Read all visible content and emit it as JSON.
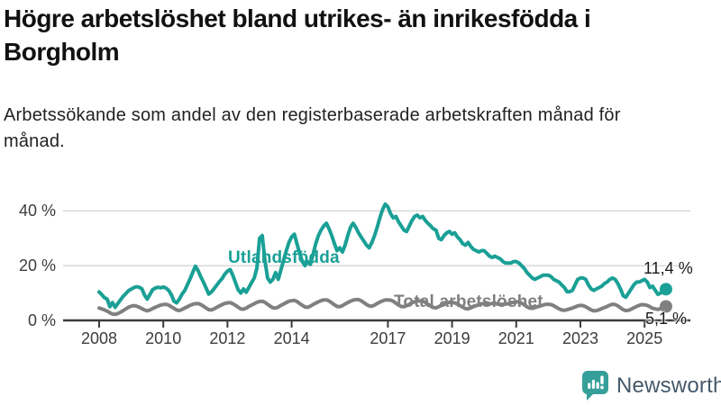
{
  "header": {
    "title": "Högre arbetslöshet bland utrikes- än inrikesfödda i Borgholm",
    "subtitle": "Arbetssökande som andel av den registerbaserade arbetskraften månad för månad."
  },
  "colors": {
    "accent_teal": "#1aa096",
    "series_gray": "#808080",
    "gridline": "#d9d9d9",
    "axis": "#3c3c3c",
    "logo_teal": "#379f99",
    "brand_text": "#44596b"
  },
  "footer": {
    "brand": "Newsworthy",
    "logo_icon": "bar-chart-speech-bubble-icon"
  },
  "chart_data": {
    "type": "line",
    "unit": "%",
    "x_start": "2008-01",
    "x_end": "2025-09",
    "frequency": "monthly",
    "x_ticks": [
      2008,
      2010,
      2012,
      2014,
      2017,
      2019,
      2021,
      2023,
      2025
    ],
    "y_ticks": [
      {
        "value": 0,
        "label": "0 %"
      },
      {
        "value": 20,
        "label": "20 %"
      },
      {
        "value": 40,
        "label": "40 %"
      }
    ],
    "ylim": [
      0,
      45
    ],
    "grid": "horizontal-only",
    "legend_position": "inline-labels",
    "series": [
      {
        "name": "Utlandsfödda",
        "color": "#1aa096",
        "end_value": 11.4,
        "end_label": "11,4 %",
        "values": [
          10.4,
          9.4,
          8.3,
          7.8,
          5.0,
          6.5,
          4.8,
          6.2,
          7.5,
          8.8,
          9.8,
          10.9,
          11.4,
          12.0,
          12.3,
          12.1,
          11.5,
          9.2,
          7.8,
          9.5,
          11.2,
          11.8,
          12.1,
          11.9,
          12.2,
          11.8,
          11.0,
          9.4,
          7.0,
          6.4,
          7.8,
          9.6,
          10.9,
          13.0,
          15.2,
          17.5,
          19.8,
          18.2,
          16.0,
          14.0,
          11.8,
          9.6,
          10.4,
          11.6,
          12.9,
          14.2,
          15.3,
          16.9,
          18.0,
          18.6,
          16.5,
          13.8,
          11.2,
          10.0,
          11.5,
          10.3,
          12.0,
          13.8,
          15.5,
          19.0,
          30.0,
          31.0,
          22.0,
          15.5,
          14.0,
          15.0,
          17.5,
          15.0,
          18.5,
          22.0,
          25.5,
          28.5,
          30.5,
          31.5,
          28.0,
          24.5,
          21.5,
          20.0,
          21.5,
          20.5,
          24.0,
          28.0,
          31.0,
          33.0,
          34.5,
          35.5,
          33.5,
          31.0,
          28.0,
          25.5,
          26.5,
          25.0,
          27.5,
          31.0,
          34.0,
          35.5,
          34.0,
          32.0,
          30.5,
          29.0,
          27.5,
          26.5,
          28.5,
          31.0,
          34.0,
          37.5,
          40.5,
          42.5,
          41.5,
          39.0,
          37.5,
          38.0,
          36.0,
          34.5,
          33.0,
          32.5,
          34.5,
          36.5,
          38.0,
          38.5,
          37.5,
          38.0,
          36.5,
          35.5,
          34.5,
          33.5,
          33.0,
          30.0,
          29.5,
          31.0,
          32.0,
          32.5,
          31.5,
          32.0,
          30.5,
          29.5,
          28.0,
          27.5,
          28.5,
          27.0,
          26.0,
          25.5,
          25.0,
          25.5,
          25.5,
          24.5,
          23.5,
          23.0,
          23.5,
          23.0,
          22.5,
          21.5,
          21.0,
          21.0,
          21.0,
          21.5,
          21.5,
          21.0,
          20.0,
          19.0,
          17.5,
          16.5,
          15.5,
          15.0,
          15.5,
          16.0,
          16.5,
          16.5,
          16.5,
          16.0,
          15.0,
          14.5,
          14.0,
          13.0,
          12.0,
          10.5,
          10.5,
          11.0,
          13.0,
          15.0,
          15.5,
          15.5,
          15.0,
          13.0,
          11.5,
          11.0,
          11.5,
          12.0,
          12.5,
          13.5,
          14.0,
          15.0,
          15.5,
          15.0,
          13.5,
          11.5,
          9.0,
          8.5,
          10.0,
          11.5,
          13.0,
          14.0,
          14.0,
          14.5,
          15.0,
          14.0,
          12.0,
          12.5,
          11.0,
          9.5,
          10.0,
          11.0,
          11.4
        ]
      },
      {
        "name": "Total arbetslöshet",
        "color": "#808080",
        "end_value": 5.1,
        "end_label": "5,1 %",
        "values": [
          4.5,
          4.2,
          3.8,
          3.4,
          2.8,
          2.3,
          2.2,
          2.5,
          3.0,
          3.6,
          4.2,
          4.8,
          5.2,
          5.4,
          5.2,
          4.8,
          4.3,
          3.8,
          3.5,
          3.8,
          4.3,
          4.8,
          5.2,
          5.6,
          5.8,
          5.9,
          5.6,
          5.0,
          4.4,
          3.8,
          3.6,
          4.0,
          4.5,
          5.0,
          5.5,
          5.9,
          6.1,
          6.2,
          5.8,
          5.2,
          4.5,
          3.9,
          3.8,
          4.2,
          4.8,
          5.3,
          5.8,
          6.2,
          6.4,
          6.5,
          6.1,
          5.5,
          4.8,
          4.2,
          4.1,
          4.5,
          5.1,
          5.6,
          6.1,
          6.6,
          6.9,
          7.0,
          6.6,
          5.9,
          5.2,
          4.6,
          4.5,
          4.9,
          5.5,
          6.0,
          6.5,
          7.0,
          7.2,
          7.3,
          6.9,
          6.2,
          5.5,
          4.9,
          4.8,
          5.2,
          5.8,
          6.3,
          6.8,
          7.2,
          7.5,
          7.5,
          7.1,
          6.4,
          5.7,
          5.1,
          5.0,
          5.4,
          6.0,
          6.5,
          7.0,
          7.4,
          7.6,
          7.6,
          7.2,
          6.5,
          5.8,
          5.3,
          5.2,
          5.6,
          6.2,
          6.7,
          7.1,
          7.5,
          7.5,
          7.4,
          7.0,
          6.3,
          5.6,
          5.1,
          5.0,
          5.4,
          5.9,
          6.4,
          6.8,
          7.1,
          7.1,
          7.0,
          6.6,
          5.9,
          5.2,
          4.7,
          4.6,
          5.0,
          5.5,
          5.9,
          6.3,
          6.6,
          6.5,
          6.4,
          6.0,
          5.4,
          4.8,
          4.3,
          4.2,
          4.6,
          5.0,
          5.4,
          5.8,
          6.1,
          6.2,
          6.1,
          6.0,
          6.2,
          6.3,
          6.0,
          5.8,
          5.9,
          6.0,
          6.1,
          6.3,
          6.6,
          6.8,
          6.7,
          6.3,
          5.7,
          5.0,
          4.5,
          4.4,
          4.7,
          5.0,
          5.3,
          5.6,
          5.9,
          5.9,
          5.8,
          5.4,
          4.8,
          4.2,
          3.8,
          3.7,
          3.9,
          4.2,
          4.5,
          4.9,
          5.3,
          5.5,
          5.4,
          5.0,
          4.4,
          3.8,
          3.5,
          3.6,
          3.9,
          4.3,
          4.7,
          5.1,
          5.6,
          5.9,
          5.8,
          5.3,
          4.6,
          3.9,
          3.6,
          3.7,
          4.1,
          4.6,
          5.1,
          5.5,
          5.8,
          5.7,
          5.5,
          5.0,
          4.4,
          4.2,
          4.0,
          4.3,
          4.8,
          5.1
        ]
      }
    ]
  }
}
